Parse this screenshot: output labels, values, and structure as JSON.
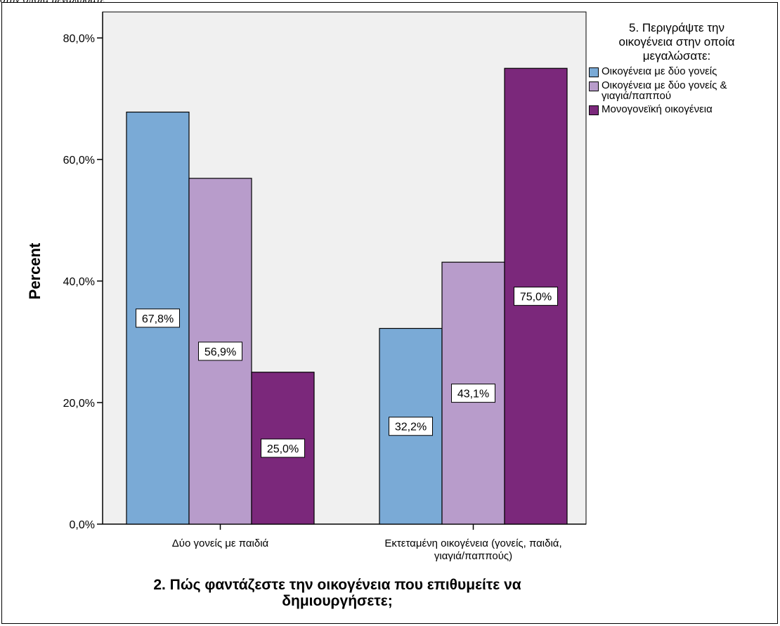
{
  "caption": "στην οποία μεγαλώσατε",
  "chart_data": {
    "type": "bar",
    "categories": [
      "Δύο γονείς με παιδιά",
      "Εκτεταμένη οικογένεια (γονείς, παιδιά,\nγιαγιά/παππούς)"
    ],
    "series": [
      {
        "name": "Οικογένεια με δύο γονείς",
        "values": [
          67.8,
          32.2
        ],
        "labels": [
          "67,8%",
          "32,2%"
        ],
        "color": "#7aaad6"
      },
      {
        "name": "Οικογένεια με δύο γονείς &\nγιαγιά/παππού",
        "values": [
          56.9,
          43.1
        ],
        "labels": [
          "56,9%",
          "43,1%"
        ],
        "color": "#b89ccb"
      },
      {
        "name": "Μονογονεϊκή οικογένεια",
        "values": [
          25.0,
          75.0
        ],
        "labels": [
          "25,0%",
          "75,0%"
        ],
        "color": "#7b287b"
      }
    ],
    "xlabel": "2. Πώς φαντάζεστε την οικογένεια που επιθυμείτε να\nδημιουργήσετε;",
    "ylabel": "Percent",
    "ylim": [
      0,
      80
    ],
    "yticks": [
      0,
      20,
      40,
      60,
      80
    ],
    "ytick_labels": [
      "0,0%",
      "20,0%",
      "40,0%",
      "60,0%",
      "80,0%"
    ],
    "legend_title": "5. Περιγράψτε την\nοικογένεια στην οποία\nμεγαλώσατε:",
    "legend_position": "right",
    "plot_background": "#f0f0f0",
    "grid": false
  }
}
